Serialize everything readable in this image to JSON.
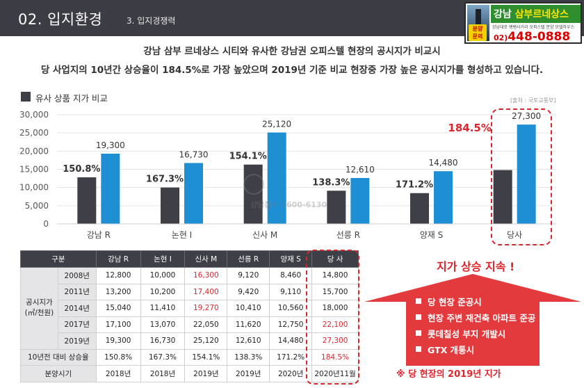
{
  "header": {
    "section_number": "02.  입지환경",
    "section_sub": "3. 입지경쟁력"
  },
  "ad": {
    "title_prefix": "강남 ",
    "title_highlight": "삼부르네상스",
    "badge": "분양\n문의",
    "small_text": "강남대로 뱅뱅사거리 오피스텔 분양 모델하우스",
    "phone_prefix": "02)",
    "phone_number": "448-0888"
  },
  "intro": {
    "line1": "강남 삼부 르네상스 시티와 유사한 강남권 오피스텔 현장의 공시지가 비교시",
    "line2": "당 사업지의 10년간 상승율이 184.5%로 가장 높았으며 2019년 기준 비교 현장중 가장 높은 공시지가를 형성하고 있습니다."
  },
  "chart_legend": "유사 상품 지가 비교",
  "source": "[출처 : 국토교통부]",
  "chart_data": {
    "type": "bar",
    "categories": [
      "강남 R",
      "논현 I",
      "신사 M",
      "선릉 R",
      "양재 S",
      "당사"
    ],
    "series": [
      {
        "values": [
          12800,
          10000,
          16300,
          9120,
          8460,
          14800
        ]
      },
      {
        "values": [
          19300,
          16730,
          25120,
          12610,
          14480,
          27300
        ]
      }
    ],
    "value_labels": [
      "19,300",
      "16,730",
      "25,120",
      "12,610",
      "14,480",
      "27,300"
    ],
    "growth_labels": [
      "150.8%",
      "167.3%",
      "154.1%",
      "138.3%",
      "171.2%",
      "184.5%"
    ],
    "ylim": [
      0,
      30000
    ],
    "yticks": [
      0,
      5000,
      10000,
      15000,
      20000,
      25000,
      30000
    ],
    "ytick_labels": [
      "0",
      "5,000",
      "10,000",
      "15,000",
      "20,000",
      "25,000",
      "30,000"
    ],
    "colors": {
      "dark": "#3e3f47",
      "blue": "#1f8fd4",
      "highlight": "#e0242b"
    }
  },
  "table": {
    "headers": [
      "구분",
      "",
      "강남 R",
      "논현 I",
      "신사 M",
      "선릉 R",
      "양재 S",
      "당 사"
    ],
    "group_label": "공시지가\n(㎡/천원)",
    "rows": [
      {
        "year": "2008년",
        "values": [
          "12,800",
          "10,000",
          "16,300",
          "9,120",
          "8,460",
          "14,800"
        ],
        "red": [
          2
        ]
      },
      {
        "year": "2011년",
        "values": [
          "13,200",
          "10,200",
          "17,400",
          "9,420",
          "9,110",
          "15,700"
        ],
        "red": [
          2
        ]
      },
      {
        "year": "2014년",
        "values": [
          "15,040",
          "11,410",
          "19,270",
          "10,410",
          "10,560",
          "18,000"
        ],
        "red": [
          2
        ]
      },
      {
        "year": "2017년",
        "values": [
          "17,100",
          "13,070",
          "22,050",
          "11,620",
          "12,750",
          "22,100"
        ],
        "red": [
          5
        ]
      },
      {
        "year": "2019년",
        "values": [
          "19,300",
          "16,730",
          "25,120",
          "12,610",
          "14,480",
          "27,300"
        ],
        "red": [
          5
        ]
      }
    ],
    "growth_row": {
      "label": "10년전 대비 상승율",
      "values": [
        "150.8%",
        "167.3%",
        "154.1%",
        "138.3%",
        "171.2%",
        "184.5%"
      ],
      "red": [
        5
      ]
    },
    "sale_row": {
      "label": "분양시기",
      "values": [
        "2018년",
        "2018년",
        "2019년",
        "2019년",
        "2020년",
        "2020년11월"
      ]
    }
  },
  "right_panel": {
    "title": "지가 상승 지속 !",
    "bullets": [
      "당 현장 준공시",
      "현장 주변 재건축 아파트 준공",
      "롯데칠성 부지 개발시",
      "GTX 개통시"
    ],
    "note": "※ 당 현장의 2019년 지가"
  },
  "watermark": {
    "text": "상담접수 1600-6130"
  }
}
